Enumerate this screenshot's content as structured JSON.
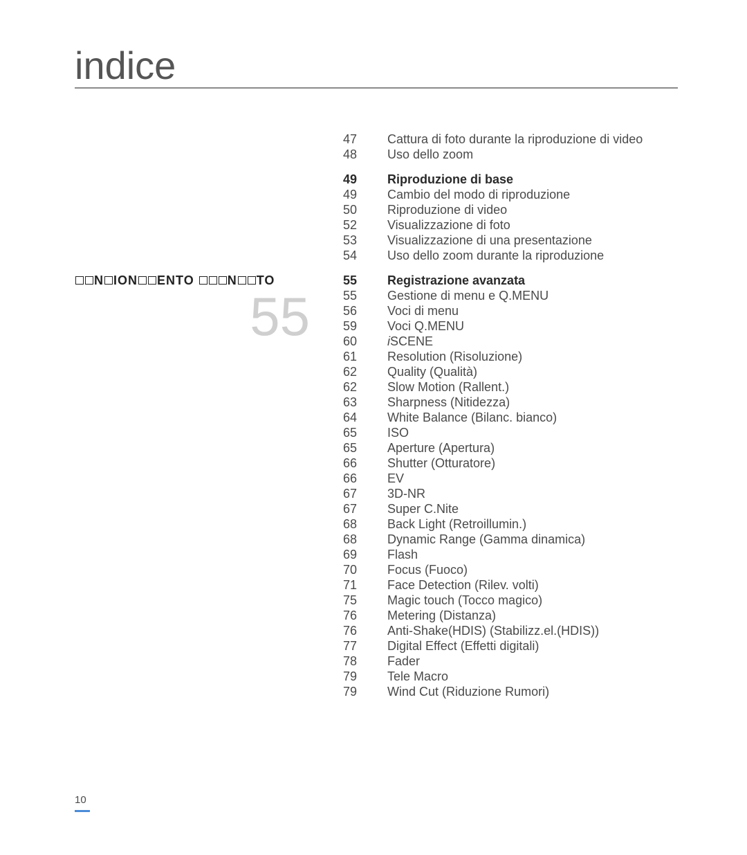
{
  "page_title": "indice",
  "page_number": "10",
  "big_number": "55",
  "left_heading_html": "FUNZIONAMENTO AVANZATO",
  "section1": {
    "items": [
      {
        "page": "47",
        "text": "Cattura di foto durante la riproduzione di video"
      },
      {
        "page": "48",
        "text": "Uso dello zoom"
      }
    ]
  },
  "section2": {
    "header": {
      "page": "49",
      "text": "Riproduzione di base"
    },
    "items": [
      {
        "page": "49",
        "text": "Cambio del modo di riproduzione"
      },
      {
        "page": "50",
        "text": "Riproduzione di video"
      },
      {
        "page": "52",
        "text": "Visualizzazione di foto"
      },
      {
        "page": "53",
        "text": "Visualizzazione di una presentazione"
      },
      {
        "page": "54",
        "text": "Uso dello zoom durante la riproduzione"
      }
    ]
  },
  "section3": {
    "header": {
      "page": "55",
      "text": "Registrazione avanzata"
    },
    "items": [
      {
        "page": "55",
        "text": "Gestione di menu e Q.MENU"
      },
      {
        "page": "56",
        "text": "Voci di menu"
      },
      {
        "page": "59",
        "text": "Voci Q.MENU"
      },
      {
        "page": "60",
        "text": "iSCENE",
        "italic_first": true
      },
      {
        "page": "61",
        "text": "Resolution (Risoluzione)"
      },
      {
        "page": "62",
        "text": "Quality (Qualità)"
      },
      {
        "page": "62",
        "text": "Slow Motion (Rallent.)"
      },
      {
        "page": "63",
        "text": "Sharpness (Nitidezza)"
      },
      {
        "page": "64",
        "text": "White Balance (Bilanc. bianco)"
      },
      {
        "page": "65",
        "text": "ISO"
      },
      {
        "page": "65",
        "text": "Aperture (Apertura)"
      },
      {
        "page": "66",
        "text": "Shutter (Otturatore)"
      },
      {
        "page": "66",
        "text": "EV"
      },
      {
        "page": "67",
        "text": "3D-NR"
      },
      {
        "page": "67",
        "text": "Super C.Nite"
      },
      {
        "page": "68",
        "text": "Back Light (Retroillumin.)"
      },
      {
        "page": "68",
        "text": "Dynamic Range (Gamma dinamica)"
      },
      {
        "page": "69",
        "text": "Flash"
      },
      {
        "page": "70",
        "text": "Focus (Fuoco)"
      },
      {
        "page": "71",
        "text": "Face Detection (Rilev. volti)"
      },
      {
        "page": "75",
        "text": "Magic touch (Tocco magico)"
      },
      {
        "page": "76",
        "text": "Metering (Distanza)"
      },
      {
        "page": "76",
        "text": "Anti-Shake(HDIS) (Stabilizz.el.(HDIS))"
      },
      {
        "page": "77",
        "text": "Digital Effect (Effetti digitali)"
      },
      {
        "page": "78",
        "text": "Fader"
      },
      {
        "page": "79",
        "text": "Tele Macro"
      },
      {
        "page": "79",
        "text": "Wind Cut (Riduzione Rumori)"
      }
    ]
  }
}
